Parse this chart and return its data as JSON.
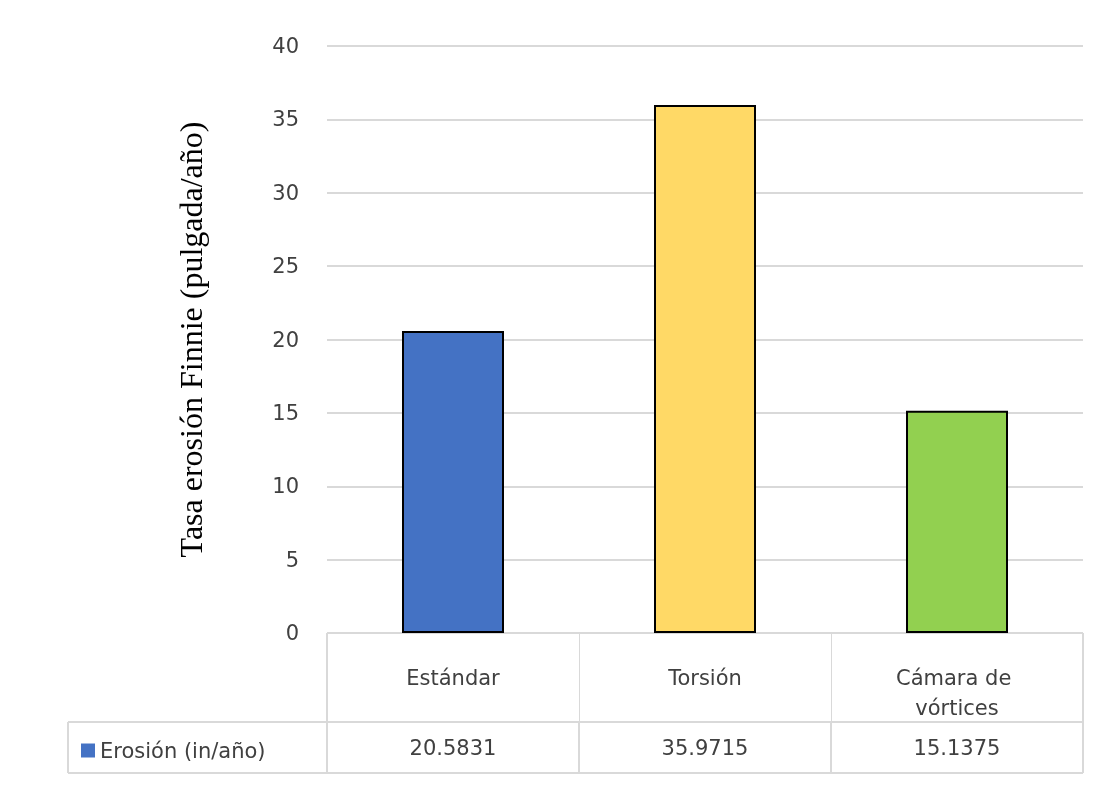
{
  "chart_data": {
    "type": "bar",
    "ylabel": "Tasa erosión Finnie (pulgada/año)",
    "categories": [
      "Estándar",
      "Torsión",
      "Cámara de vórtices"
    ],
    "series": [
      {
        "name": "Erosión (in/año)",
        "color": "#4472c4",
        "colors": [
          "#4472c4",
          "#ffd966",
          "#92d050"
        ],
        "values": [
          20.5831,
          35.9715,
          15.1375
        ]
      }
    ],
    "ylim": [
      0,
      40
    ],
    "yticks": [
      0,
      5,
      10,
      15,
      20,
      25,
      30,
      35,
      40
    ],
    "grid": "y",
    "legend": "bottom left",
    "data_labels": true
  }
}
